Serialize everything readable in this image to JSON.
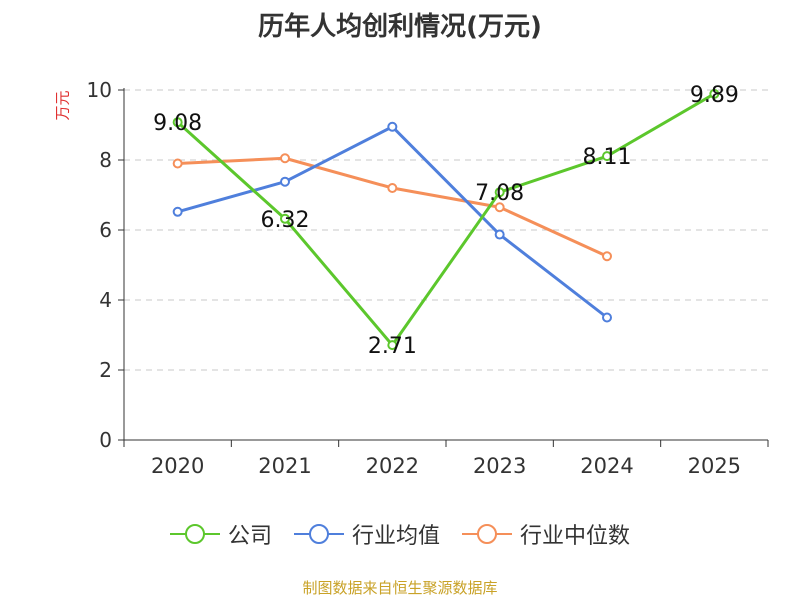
{
  "chart_data": {
    "type": "line",
    "title": "历年人均创利情况(万元)",
    "ylabel": "万元",
    "categories": [
      "2020",
      "2021",
      "2022",
      "2023",
      "2024",
      "2025"
    ],
    "ylim": [
      0,
      10
    ],
    "yticks": [
      0,
      2,
      4,
      6,
      8,
      10
    ],
    "grid": true,
    "legend_position": "bottom",
    "series": [
      {
        "name": "公司",
        "color": "#5cc72c",
        "values": [
          9.08,
          6.32,
          2.71,
          7.08,
          8.11,
          9.89
        ],
        "labels": [
          "9.08",
          "6.32",
          "2.71",
          "7.08",
          "8.11",
          "9.89"
        ]
      },
      {
        "name": "行业均值",
        "color": "#4f7fdc",
        "values": [
          6.52,
          7.38,
          8.95,
          5.87,
          3.5,
          null
        ]
      },
      {
        "name": "行业中位数",
        "color": "#f58f59",
        "values": [
          7.9,
          8.05,
          7.2,
          6.65,
          5.25,
          null
        ]
      }
    ]
  },
  "source": "制图数据来自恒生聚源数据库"
}
